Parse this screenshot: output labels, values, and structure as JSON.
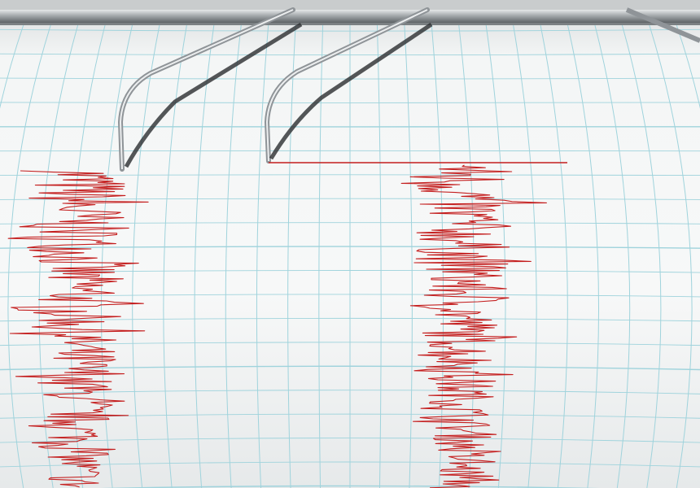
{
  "colors": {
    "paper": "#f2f4f4",
    "grid": "#9fd3dc",
    "trace": "#c41e1e",
    "metal": "#b8bcbf"
  },
  "traces": [
    {
      "name": "left-seismogram"
    },
    {
      "name": "right-seismogram"
    }
  ]
}
